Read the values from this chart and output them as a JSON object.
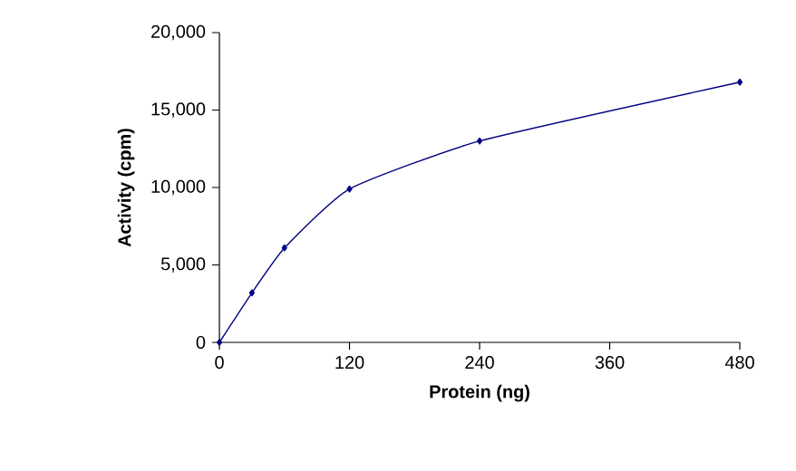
{
  "chart_data": {
    "type": "line",
    "xlabel": "Protein (ng)",
    "ylabel": "Activity (cpm)",
    "x": [
      0,
      30,
      60,
      120,
      240,
      480
    ],
    "series": [
      {
        "color": "#000080",
        "values": [
          0,
          3200,
          6100,
          9900,
          13000,
          16800
        ]
      }
    ],
    "xlim": [
      0,
      480
    ],
    "xticks": [
      0,
      120,
      240,
      360,
      480
    ],
    "ylim": [
      0,
      20000
    ],
    "yticks": [
      0,
      {
        "value": 5000,
        "label": "5,000"
      },
      {
        "value": 10000,
        "label": "10,000"
      },
      {
        "value": 15000,
        "label": "15,000"
      },
      {
        "value": 20000,
        "label": "20,000"
      }
    ],
    "grid": false,
    "marker": "diamond",
    "line_style": "solid"
  }
}
